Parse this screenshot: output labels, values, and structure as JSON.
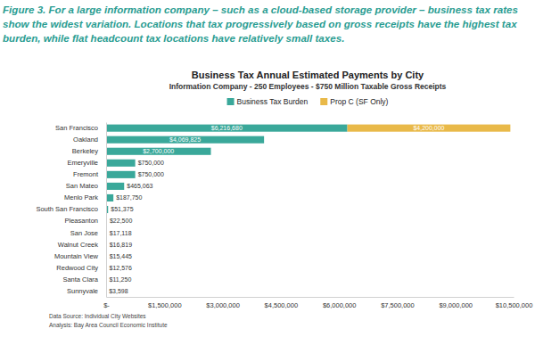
{
  "chart_data": {
    "type": "bar",
    "orientation": "horizontal",
    "stacked": true,
    "data_labels": true,
    "grid": false,
    "legend": "top",
    "caption": "Figure 3. For a large information company – such as a cloud-based storage provider – business tax rates show the widest variation. Locations that tax progressively based on gross receipts have the highest tax burden, while flat headcount tax locations have relatively small taxes.",
    "title": "Business Tax Annual Estimated Payments by City",
    "subtitle": "Information Company - 250 Employees - $750 Million Taxable Gross Receipts",
    "categories": [
      "San Francisco",
      "Oakland",
      "Berkeley",
      "Emeryville",
      "Fremont",
      "San Mateo",
      "Menlo Park",
      "South San Francisco",
      "Pleasanton",
      "San Jose",
      "Walnut Creek",
      "Mountain View",
      "Redwood City",
      "Santa Clara",
      "Sunnyvale"
    ],
    "series": [
      {
        "name": "Business Tax Burden",
        "color": "#3aa89a",
        "values": [
          6216680,
          4069825,
          2700000,
          750000,
          750000,
          465063,
          187750,
          51375,
          22500,
          17118,
          16819,
          15445,
          12576,
          11250,
          3598
        ],
        "value_labels": [
          "$6,216,680",
          "$4,069,825",
          "$2,700,000",
          "$750,000",
          "$750,000",
          "$465,063",
          "$187,750",
          "$51,375",
          "$22,500",
          "$17,118",
          "$16,819",
          "$15,445",
          "$12,576",
          "$11,250",
          "$3,598"
        ]
      },
      {
        "name": "Prop C (SF Only)",
        "color": "#e9b949",
        "values": [
          4200000,
          null,
          null,
          null,
          null,
          null,
          null,
          null,
          null,
          null,
          null,
          null,
          null,
          null,
          null
        ],
        "value_labels": [
          "$4,200,000",
          null,
          null,
          null,
          null,
          null,
          null,
          null,
          null,
          null,
          null,
          null,
          null,
          null,
          null
        ]
      }
    ],
    "xlim": [
      0,
      10500000
    ],
    "xticks": [
      {
        "value": 0,
        "label": "$-"
      },
      {
        "value": 1500000,
        "label": "$1,500,000"
      },
      {
        "value": 3000000,
        "label": "$3,000,000"
      },
      {
        "value": 4500000,
        "label": "$4,500,000"
      },
      {
        "value": 6000000,
        "label": "$6,000,000"
      },
      {
        "value": 7500000,
        "label": "$7,500,000"
      },
      {
        "value": 9000000,
        "label": "$9,000,000"
      },
      {
        "value": 10500000,
        "label": "$10,500,000"
      }
    ],
    "notes": [
      "Data Source: Individual City Websites",
      "Analysis: Bay Area Council Economic Institute"
    ]
  }
}
